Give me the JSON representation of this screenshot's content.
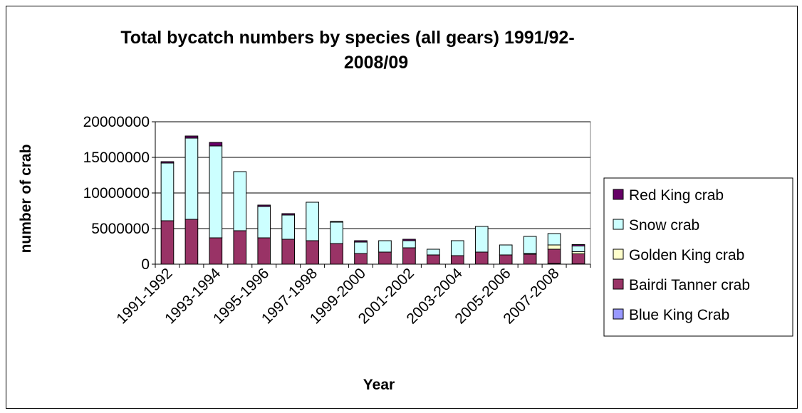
{
  "chart_data": {
    "type": "bar",
    "stacked": true,
    "title_line1": "Total bycatch numbers by species (all gears) 1991/92-",
    "title_line2": "2008/09",
    "xlabel": "Year",
    "ylabel": "number of crab",
    "ylim": [
      0,
      20000000
    ],
    "yticks": [
      "0",
      "5000000",
      "10000000",
      "15000000",
      "20000000"
    ],
    "ytick_values": [
      0,
      5000000,
      10000000,
      15000000,
      20000000
    ],
    "grid": "horizontal",
    "legend_position": "right",
    "categories": [
      "1991-1992",
      "1992-1993",
      "1993-1994",
      "1994-1995",
      "1995-1996",
      "1996-1997",
      "1997-1998",
      "1998-1999",
      "1999-2000",
      "2000-2001",
      "2001-2002",
      "2002-2003",
      "2003-2004",
      "2004-2005",
      "2005-2006",
      "2006-2007",
      "2007-2008",
      "2008-2009"
    ],
    "tick_labels_shown": [
      "1991-1992",
      "",
      "1993-1994",
      "",
      "1995-1996",
      "",
      "1997-1998",
      "",
      "1999-2000",
      "",
      "2001-2002",
      "",
      "2003-2004",
      "",
      "2005-2006",
      "",
      "2007-2008",
      ""
    ],
    "series": [
      {
        "name": "Blue King Crab",
        "color": "#9999FF",
        "values": [
          0,
          0,
          0,
          0,
          0,
          0,
          0,
          0,
          0,
          0,
          0,
          0,
          0,
          0,
          0,
          0,
          100000,
          50000
        ]
      },
      {
        "name": "Bairdi Tanner crab",
        "color": "#993366",
        "values": [
          6100000,
          6300000,
          3700000,
          4700000,
          3700000,
          3500000,
          3300000,
          2900000,
          1500000,
          1700000,
          2300000,
          1300000,
          1200000,
          1700000,
          1300000,
          1400000,
          2000000,
          1400000
        ]
      },
      {
        "name": "Golden King crab",
        "color": "#FFFFCC",
        "values": [
          0,
          0,
          0,
          0,
          0,
          0,
          0,
          0,
          0,
          0,
          0,
          0,
          0,
          0,
          0,
          100000,
          600000,
          300000
        ]
      },
      {
        "name": "Snow crab",
        "color": "#CCFFFF",
        "values": [
          8100000,
          11400000,
          12900000,
          8300000,
          4400000,
          3400000,
          5400000,
          3000000,
          1600000,
          1600000,
          1000000,
          800000,
          2100000,
          3600000,
          1400000,
          2400000,
          1600000,
          800000
        ]
      },
      {
        "name": "Red King crab",
        "color": "#660066",
        "values": [
          200000,
          300000,
          500000,
          0,
          200000,
          200000,
          0,
          100000,
          200000,
          0,
          200000,
          0,
          0,
          0,
          0,
          0,
          0,
          200000
        ]
      }
    ],
    "legend_order": [
      "Red King crab",
      "Snow crab",
      "Golden King crab",
      "Bairdi Tanner crab",
      "Blue King Crab"
    ]
  }
}
